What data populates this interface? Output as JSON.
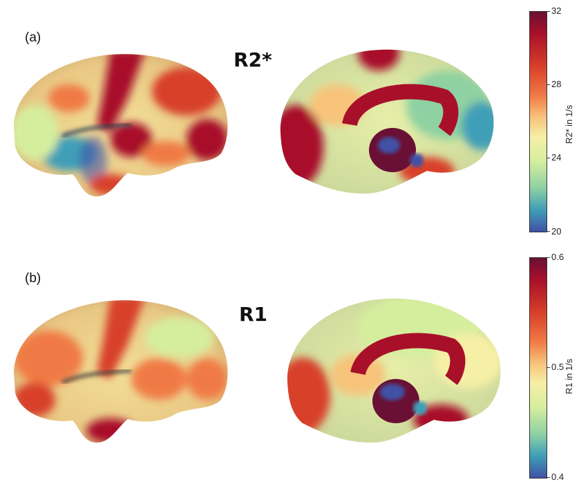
{
  "panels": [
    {
      "label": "(a)",
      "title": "R2*",
      "colorbar": {
        "label": "R2* in 1/s",
        "ticks": [
          "32",
          "28",
          "24",
          "20"
        ],
        "min": 20,
        "max": 32
      }
    },
    {
      "label": "(b)",
      "title": "R1",
      "colorbar": {
        "label": "R1 in 1/s",
        "ticks": [
          "0.6",
          "0.5",
          "0.4"
        ],
        "min": 0.4,
        "max": 0.6
      }
    }
  ],
  "colormap": [
    "#6a1034",
    "#a8102a",
    "#d8402a",
    "#f07a45",
    "#f8c37a",
    "#f6efa6",
    "#d5ee9e",
    "#8ed1a2",
    "#3f9fb8",
    "#3f51a6"
  ]
}
